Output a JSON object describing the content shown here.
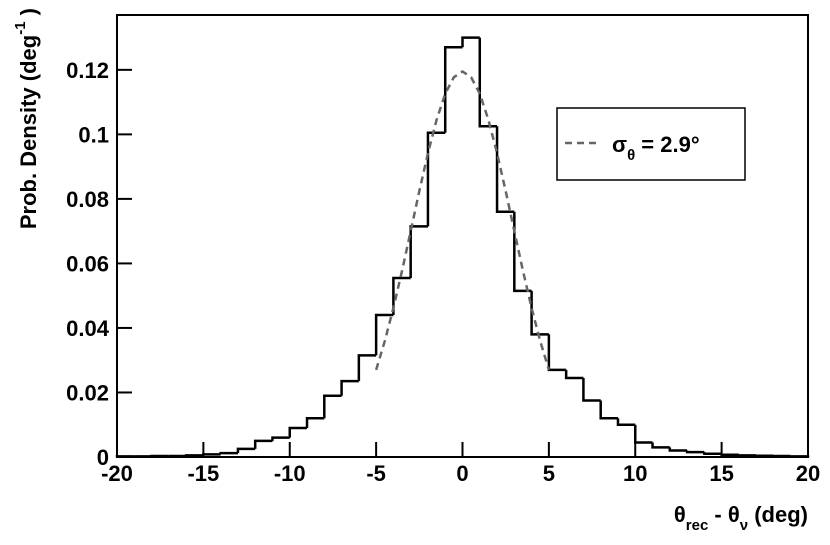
{
  "chart_data": {
    "type": "histogram",
    "xlabel": [
      "θ",
      "rec",
      " - θ",
      "ν",
      " (deg)"
    ],
    "ylabel": [
      "Prob. Density (deg",
      "-1",
      " )"
    ],
    "bins": [
      -20,
      -19,
      -18,
      -17,
      -16,
      -15,
      -14,
      -13,
      -12,
      -11,
      -10,
      -9,
      -8,
      -7,
      -6,
      -5,
      -4,
      -3,
      -2,
      -1,
      0,
      1,
      2,
      3,
      4,
      5,
      6,
      7,
      8,
      9,
      10,
      11,
      12,
      13,
      14,
      15,
      16,
      17,
      18,
      19,
      20
    ],
    "values": [
      0.0002,
      0.0002,
      0.0003,
      0.0003,
      0.0005,
      0.0008,
      0.0012,
      0.0025,
      0.005,
      0.006,
      0.009,
      0.012,
      0.019,
      0.0235,
      0.0315,
      0.044,
      0.0555,
      0.0715,
      0.1005,
      0.127,
      0.13,
      0.1025,
      0.076,
      0.0515,
      0.038,
      0.027,
      0.0245,
      0.0175,
      0.012,
      0.01,
      0.0045,
      0.003,
      0.002,
      0.0015,
      0.001,
      0.0007,
      0.0005,
      0.0004,
      0.0003,
      0.0002
    ],
    "color": "#000000",
    "xlim": [
      -20,
      20
    ],
    "ylim": [
      0,
      0.137
    ],
    "xticks": [
      -20,
      -15,
      -10,
      -5,
      0,
      5,
      10,
      15,
      20
    ],
    "yticks": [
      0,
      0.02,
      0.04,
      0.06,
      0.08,
      0.1,
      0.12
    ],
    "legend": "upper right",
    "series": [
      {
        "type": "line",
        "name": [
          "σ",
          "θ",
          " = 2.9°"
        ],
        "color": "#666666",
        "dashed": true,
        "x": [
          -5,
          -4.5,
          -4,
          -3.5,
          -3,
          -2.5,
          -2,
          -1.5,
          -1,
          -0.5,
          0,
          0.5,
          1,
          1.5,
          2,
          2.5,
          3,
          3.5,
          4,
          4.5,
          5
        ],
        "values": [
          0.027,
          0.0359,
          0.0462,
          0.0577,
          0.07,
          0.0824,
          0.0942,
          0.1045,
          0.1126,
          0.1177,
          0.1195,
          0.1177,
          0.1126,
          0.1045,
          0.0942,
          0.0824,
          0.07,
          0.0577,
          0.0462,
          0.0359,
          0.027
        ]
      }
    ]
  }
}
